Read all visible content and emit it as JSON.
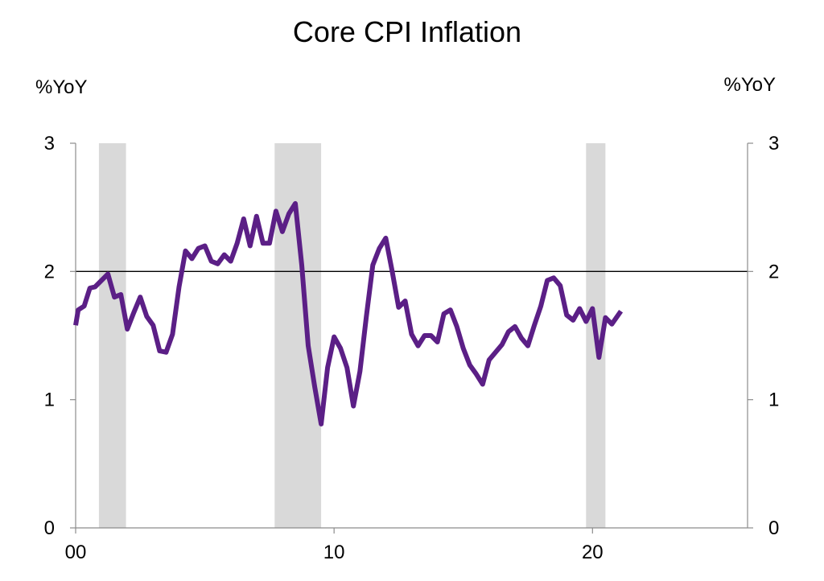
{
  "chart_data": {
    "type": "line",
    "title": "Core CPI Inflation",
    "left_unit_label": "%YoY",
    "right_unit_label": "%YoY",
    "xlim": [
      2000,
      2026
    ],
    "ylim": [
      0,
      3
    ],
    "x_ticks": [
      {
        "value": 2000,
        "label": "00"
      },
      {
        "value": 2010,
        "label": "10"
      },
      {
        "value": 2020,
        "label": "20"
      }
    ],
    "y_ticks": [
      {
        "value": 0,
        "label": "0"
      },
      {
        "value": 1,
        "label": "1"
      },
      {
        "value": 2,
        "label": "2"
      },
      {
        "value": 3,
        "label": "3"
      }
    ],
    "reference_line": {
      "y": 2.0,
      "color": "#000000"
    },
    "shaded_periods": [
      {
        "start": 2000.9,
        "end": 2001.95
      },
      {
        "start": 2007.7,
        "end": 2009.5
      },
      {
        "start": 2019.75,
        "end": 2020.5
      }
    ],
    "shade_color": "#d9d9d9",
    "series": [
      {
        "color": "#5b1f86",
        "points": [
          [
            2000.0,
            1.58
          ],
          [
            2000.1,
            1.7
          ],
          [
            2000.33,
            1.73
          ],
          [
            2000.55,
            1.87
          ],
          [
            2000.75,
            1.88
          ],
          [
            2001.0,
            1.93
          ],
          [
            2001.25,
            1.98
          ],
          [
            2001.5,
            1.8
          ],
          [
            2001.75,
            1.82
          ],
          [
            2002.0,
            1.55
          ],
          [
            2002.25,
            1.68
          ],
          [
            2002.5,
            1.8
          ],
          [
            2002.75,
            1.65
          ],
          [
            2003.0,
            1.58
          ],
          [
            2003.25,
            1.38
          ],
          [
            2003.5,
            1.37
          ],
          [
            2003.75,
            1.51
          ],
          [
            2004.0,
            1.88
          ],
          [
            2004.25,
            2.16
          ],
          [
            2004.5,
            2.1
          ],
          [
            2004.75,
            2.18
          ],
          [
            2005.0,
            2.2
          ],
          [
            2005.25,
            2.08
          ],
          [
            2005.5,
            2.06
          ],
          [
            2005.75,
            2.13
          ],
          [
            2006.0,
            2.08
          ],
          [
            2006.25,
            2.22
          ],
          [
            2006.5,
            2.41
          ],
          [
            2006.75,
            2.2
          ],
          [
            2007.0,
            2.43
          ],
          [
            2007.25,
            2.22
          ],
          [
            2007.5,
            2.22
          ],
          [
            2007.75,
            2.47
          ],
          [
            2008.0,
            2.31
          ],
          [
            2008.25,
            2.45
          ],
          [
            2008.5,
            2.53
          ],
          [
            2008.75,
            2.05
          ],
          [
            2009.0,
            1.42
          ],
          [
            2009.25,
            1.1
          ],
          [
            2009.5,
            0.81
          ],
          [
            2009.75,
            1.25
          ],
          [
            2010.0,
            1.49
          ],
          [
            2010.25,
            1.4
          ],
          [
            2010.5,
            1.25
          ],
          [
            2010.75,
            0.95
          ],
          [
            2011.0,
            1.22
          ],
          [
            2011.25,
            1.65
          ],
          [
            2011.5,
            2.05
          ],
          [
            2011.75,
            2.18
          ],
          [
            2012.0,
            2.26
          ],
          [
            2012.25,
            2.0
          ],
          [
            2012.5,
            1.72
          ],
          [
            2012.75,
            1.77
          ],
          [
            2013.0,
            1.51
          ],
          [
            2013.25,
            1.42
          ],
          [
            2013.5,
            1.5
          ],
          [
            2013.75,
            1.5
          ],
          [
            2014.0,
            1.45
          ],
          [
            2014.25,
            1.67
          ],
          [
            2014.5,
            1.7
          ],
          [
            2014.75,
            1.57
          ],
          [
            2015.0,
            1.4
          ],
          [
            2015.25,
            1.27
          ],
          [
            2015.5,
            1.2
          ],
          [
            2015.75,
            1.12
          ],
          [
            2016.0,
            1.31
          ],
          [
            2016.25,
            1.37
          ],
          [
            2016.5,
            1.43
          ],
          [
            2016.75,
            1.53
          ],
          [
            2017.0,
            1.57
          ],
          [
            2017.25,
            1.48
          ],
          [
            2017.5,
            1.42
          ],
          [
            2017.75,
            1.58
          ],
          [
            2018.0,
            1.73
          ],
          [
            2018.25,
            1.93
          ],
          [
            2018.5,
            1.95
          ],
          [
            2018.75,
            1.89
          ],
          [
            2019.0,
            1.66
          ],
          [
            2019.25,
            1.62
          ],
          [
            2019.5,
            1.71
          ],
          [
            2019.75,
            1.61
          ],
          [
            2020.0,
            1.71
          ],
          [
            2020.25,
            1.33
          ],
          [
            2020.5,
            1.64
          ],
          [
            2020.75,
            1.59
          ],
          [
            2021.1,
            1.69
          ]
        ]
      }
    ]
  }
}
